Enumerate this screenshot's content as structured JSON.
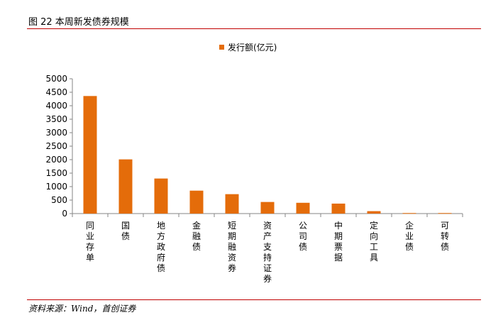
{
  "figure": {
    "title": "图 22 本周新发债券规模",
    "source": "资料来源：Wind，首创证券"
  },
  "colors": {
    "bar": "#e46c0a",
    "rule": "#c00000",
    "axis": "#868686"
  },
  "chart_data": {
    "type": "bar",
    "title": "",
    "xlabel": "",
    "ylabel": "",
    "legend": [
      "发行额(亿元)"
    ],
    "legend_position": "top",
    "categories": [
      "同业存单",
      "国债",
      "地方政府债",
      "金融债",
      "短期融资券",
      "资产支持证券",
      "公司债",
      "中期票据",
      "定向工具",
      "企业债",
      "可转债"
    ],
    "values": [
      4360,
      2010,
      1300,
      850,
      720,
      430,
      400,
      370,
      90,
      20,
      20
    ],
    "ylim": [
      0,
      5000
    ],
    "yticks": [
      0,
      500,
      1000,
      1500,
      2000,
      2500,
      3000,
      3500,
      4000,
      4500,
      5000
    ],
    "grid": false
  }
}
